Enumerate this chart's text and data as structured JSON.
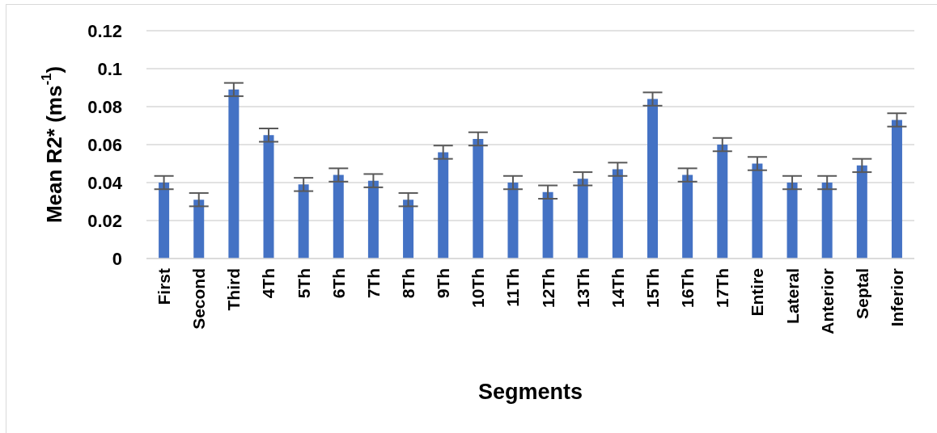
{
  "chart_data": {
    "type": "bar",
    "xlabel": "Segments",
    "ylabel": "Mean R2* (ms$^{-1}$)",
    "categories": [
      "First",
      "Second",
      "Third",
      "4Th",
      "5Th",
      "6Th",
      "7Th",
      "8Th",
      "9Th",
      "10Th",
      "11Th",
      "12Th",
      "13Th",
      "14Th",
      "15Th",
      "16Th",
      "17Th",
      "Entire",
      "Lateral",
      "Anterior",
      "Septal",
      "Inferior"
    ],
    "values": [
      0.04,
      0.031,
      0.089,
      0.065,
      0.039,
      0.044,
      0.041,
      0.031,
      0.056,
      0.063,
      0.04,
      0.035,
      0.042,
      0.047,
      0.084,
      0.044,
      0.06,
      0.05,
      0.04,
      0.04,
      0.049,
      0.073
    ],
    "errors": [
      0.0035,
      0.0035,
      0.0035,
      0.0035,
      0.0035,
      0.0035,
      0.0035,
      0.0035,
      0.0035,
      0.0035,
      0.0035,
      0.0035,
      0.0035,
      0.0035,
      0.0035,
      0.0035,
      0.0035,
      0.0035,
      0.0035,
      0.0035,
      0.0035,
      0.0035
    ],
    "color": "#4472c4",
    "ylim": [
      0,
      0.12
    ],
    "yticks": [
      0,
      0.02,
      0.04,
      0.06,
      0.08,
      0.1,
      0.12
    ],
    "grid": "y"
  }
}
